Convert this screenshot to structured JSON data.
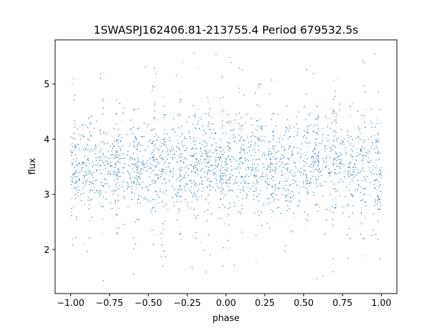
{
  "chart_data": {
    "type": "scatter",
    "title": "1SWASPJ162406.81-213755.4 Period 679532.5s",
    "xlabel": "phase",
    "ylabel": "flux",
    "xlim": [
      -1.1,
      1.1
    ],
    "ylim": [
      1.2,
      5.8
    ],
    "xticks": [
      -1.0,
      -0.75,
      -0.5,
      -0.25,
      0.0,
      0.25,
      0.5,
      0.75,
      1.0
    ],
    "xtick_labels": [
      "−1.00",
      "−0.75",
      "−0.50",
      "−0.25",
      "0.00",
      "0.25",
      "0.50",
      "0.75",
      "1.00"
    ],
    "yticks": [
      2,
      3,
      4,
      5
    ],
    "ytick_labels": [
      "2",
      "3",
      "4",
      "5"
    ],
    "grid": false,
    "marker_color": "#1f77b4",
    "series": [
      {
        "x_range": [
          -1.0,
          1.0
        ],
        "median": 3.5,
        "typical_spread": [
          2.7,
          4.3
        ],
        "extreme_range": [
          1.4,
          5.6
        ],
        "vertical_excursions_x": [
          -0.98,
          -0.88,
          -0.8,
          -0.7,
          -0.58,
          -0.47,
          -0.4,
          -0.3,
          -0.2,
          -0.12,
          -0.02,
          0.02,
          0.1,
          0.2,
          0.3,
          0.4,
          0.52,
          0.58,
          0.7,
          0.8,
          0.88,
          0.98
        ]
      }
    ]
  }
}
